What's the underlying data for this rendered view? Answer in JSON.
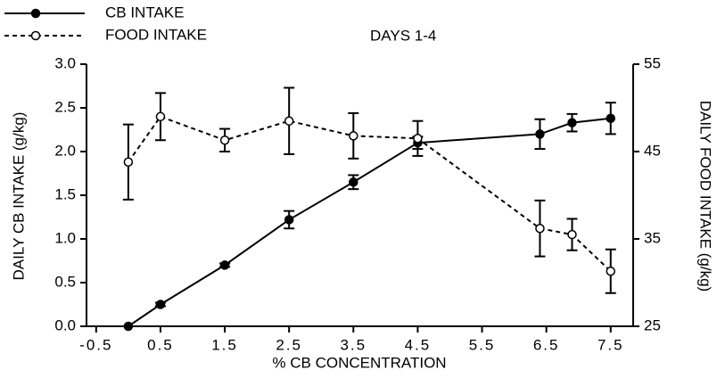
{
  "chart_data": {
    "type": "line",
    "annotation": "DAYS 1-4",
    "xlabel": "% CB CONCENTRATION",
    "ylabel": "DAILY CB INTAKE (g/kg)",
    "y2label": "DAILY FOOD INTAKE (g/kg)",
    "x": [
      0,
      0.5,
      1.5,
      2.5,
      3.5,
      4.5,
      6.4,
      6.9,
      7.5
    ],
    "xlim": [
      -0.65,
      7.85
    ],
    "xticks": [
      -0.5,
      0.5,
      1.5,
      2.5,
      3.5,
      4.5,
      5.5,
      6.5,
      7.5
    ],
    "ylim": [
      0,
      3
    ],
    "yticks": [
      {
        "value": 0,
        "label": "0.0"
      },
      0.5,
      {
        "value": 1,
        "label": "1.0"
      },
      1.5,
      {
        "value": 2,
        "label": "2.0"
      },
      2.5,
      {
        "value": 3,
        "label": "3.0"
      }
    ],
    "y2lim": [
      25,
      55
    ],
    "y2ticks": [
      25,
      35,
      45,
      55
    ],
    "series": [
      {
        "name": "CB INTAKE",
        "color": "#000000",
        "dashed": false,
        "filled": true,
        "values": [
          0,
          0.25,
          0.7,
          1.22,
          1.65,
          2.1,
          2.2,
          2.33,
          2.38
        ],
        "errors": [
          0,
          0.02,
          0.02,
          0.1,
          0.08,
          0.07,
          0.17,
          0.1,
          0.18
        ]
      },
      {
        "name": "FOOD INTAKE",
        "color": "#000000",
        "dashed": true,
        "filled": false,
        "axis": "y2",
        "values": [
          43.8,
          49,
          46.3,
          48.5,
          46.8,
          46.5,
          36.2,
          35.5,
          31.3
        ],
        "errors": [
          4.3,
          2.7,
          1.3,
          3.8,
          2.6,
          2,
          3.2,
          1.8,
          2.5
        ]
      }
    ]
  }
}
